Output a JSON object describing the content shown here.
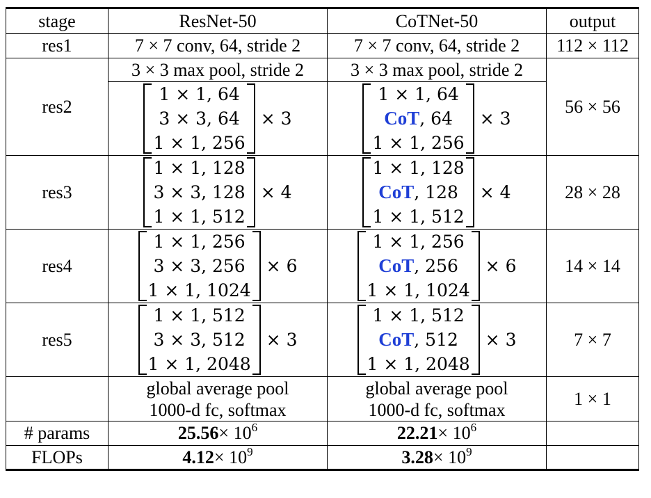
{
  "headers": {
    "stage": "stage",
    "resnet": "ResNet-50",
    "cotnet": "CoTNet-50",
    "output": "output"
  },
  "res1": {
    "stage": "res1",
    "resnet": "7 × 7 conv, 64, stride 2",
    "cotnet": "7 × 7 conv, 64, stride 2",
    "output": "112 × 112"
  },
  "res2": {
    "stage": "res2",
    "pool_resnet": "3 × 3 max pool, stride 2",
    "pool_cotnet": "3 × 3 max pool, stride 2",
    "output": "56 × 56",
    "resnet": {
      "l1": "1 × 1, 64",
      "l2": "3 × 3, 64",
      "l3": "1 × 1, 256",
      "rep": "× 3"
    },
    "cotnet": {
      "l1": "1 × 1, 64",
      "l2a": "CoT",
      "l2b": ", 64",
      "l3": "1 × 1, 256",
      "rep": "× 3"
    }
  },
  "res3": {
    "stage": "res3",
    "output": "28 × 28",
    "resnet": {
      "l1": "1 × 1, 128",
      "l2": "3 × 3, 128",
      "l3": "1 × 1, 512",
      "rep": "× 4"
    },
    "cotnet": {
      "l1": "1 × 1, 128",
      "l2a": "CoT",
      "l2b": ", 128",
      "l3": "1 × 1, 512",
      "rep": "× 4"
    }
  },
  "res4": {
    "stage": "res4",
    "output": "14 × 14",
    "resnet": {
      "l1": "1 × 1, 256",
      "l2": "3 × 3, 256",
      "l3": "1 × 1, 1024",
      "rep": "× 6"
    },
    "cotnet": {
      "l1": "1 × 1, 256",
      "l2a": "CoT",
      "l2b": ", 256",
      "l3": "1 × 1, 1024",
      "rep": "× 6"
    }
  },
  "res5": {
    "stage": "res5",
    "output": "7 × 7",
    "resnet": {
      "l1": "1 × 1, 512",
      "l2": "3 × 3, 512",
      "l3": "1 × 1, 2048",
      "rep": "× 3"
    },
    "cotnet": {
      "l1": "1 × 1, 512",
      "l2a": "CoT",
      "l2b": ", 512",
      "l3": "1 × 1, 2048",
      "rep": "× 3"
    }
  },
  "head": {
    "resnet_l1": "global average pool",
    "resnet_l2": "1000-d fc, softmax",
    "cotnet_l1": "global average pool",
    "cotnet_l2": "1000-d fc, softmax",
    "output": "1 × 1"
  },
  "params": {
    "label": "# params",
    "resnet_value": "25.56",
    "resnet_base": "× 10",
    "resnet_exp": "6",
    "cotnet_value": "22.21",
    "cotnet_base": "× 10",
    "cotnet_exp": "6"
  },
  "flops": {
    "label": "FLOPs",
    "resnet_value": "4.12",
    "resnet_base": "× 10",
    "resnet_exp": "9",
    "cotnet_value": "3.28",
    "cotnet_base": "× 10",
    "cotnet_exp": "9"
  },
  "colors": {
    "cot_highlight": "#1f3fd6"
  }
}
